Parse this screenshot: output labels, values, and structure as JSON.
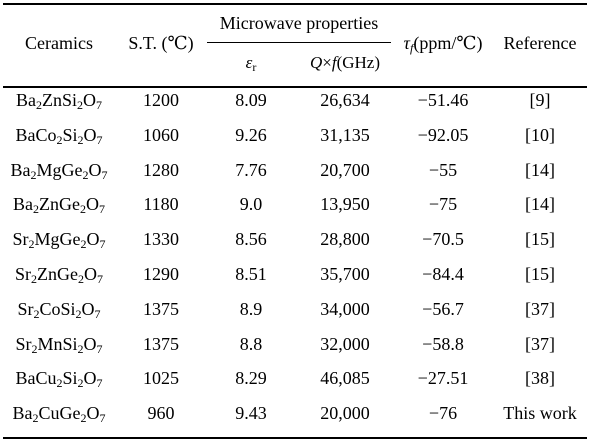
{
  "table": {
    "headers": {
      "ceramics": "Ceramics",
      "sintering_temp": "S.T. (℃)",
      "microwave_group": "Microwave properties",
      "epsilon_symbol": "ε",
      "epsilon_sub": "r",
      "qf_q": "Q",
      "qf_times": "×",
      "qf_f": "f",
      "qf_unit": "(GHz)",
      "tau_symbol": "τ",
      "tau_sub": "f",
      "tau_unit": "(ppm/℃)",
      "reference": "Reference"
    },
    "rows": [
      {
        "formula": [
          [
            "Ba",
            ""
          ],
          [
            "2",
            ""
          ],
          [
            "ZnSi",
            ""
          ],
          [
            "2",
            ""
          ],
          [
            "O",
            ""
          ],
          [
            "7",
            ""
          ]
        ],
        "parts": [
          "Ba",
          "2",
          "ZnSi",
          "2",
          "O",
          "7"
        ],
        "st": "1200",
        "er": "8.09",
        "qf": "26,634",
        "tf": "−51.46",
        "ref": "[9]"
      },
      {
        "parts": [
          "BaCo",
          "2",
          "Si",
          "2",
          "O",
          "7"
        ],
        "st": "1060",
        "er": "9.26",
        "qf": "31,135",
        "tf": "−92.05",
        "ref": "[10]"
      },
      {
        "parts": [
          "Ba",
          "2",
          "MgGe",
          "2",
          "O",
          "7"
        ],
        "st": "1280",
        "er": "7.76",
        "qf": "20,700",
        "tf": "−55",
        "ref": "[14]"
      },
      {
        "parts": [
          "Ba",
          "2",
          "ZnGe",
          "2",
          "O",
          "7"
        ],
        "st": "1180",
        "er": "9.0",
        "qf": "13,950",
        "tf": "−75",
        "ref": "[14]"
      },
      {
        "parts": [
          "Sr",
          "2",
          "MgGe",
          "2",
          "O",
          "7"
        ],
        "st": "1330",
        "er": "8.56",
        "qf": "28,800",
        "tf": "−70.5",
        "ref": "[15]"
      },
      {
        "parts": [
          "Sr",
          "2",
          "ZnGe",
          "2",
          "O",
          "7"
        ],
        "st": "1290",
        "er": "8.51",
        "qf": "35,700",
        "tf": "−84.4",
        "ref": "[15]"
      },
      {
        "parts": [
          "Sr",
          "2",
          "CoSi",
          "2",
          "O",
          "7"
        ],
        "st": "1375",
        "er": "8.9",
        "qf": "34,000",
        "tf": "−56.7",
        "ref": "[37]"
      },
      {
        "parts": [
          "Sr",
          "2",
          "MnSi",
          "2",
          "O",
          "7"
        ],
        "st": "1375",
        "er": "8.8",
        "qf": "32,000",
        "tf": "−58.8",
        "ref": "[37]"
      },
      {
        "parts": [
          "BaCu",
          "2",
          "Si",
          "2",
          "O",
          "7"
        ],
        "st": "1025",
        "er": "8.29",
        "qf": "46,085",
        "tf": "−27.51",
        "ref": "[38]"
      },
      {
        "parts": [
          "Ba",
          "2",
          "CuGe",
          "2",
          "O",
          "7"
        ],
        "st": "960",
        "er": "9.43",
        "qf": "20,000",
        "tf": "−76",
        "ref": "This work"
      }
    ]
  }
}
